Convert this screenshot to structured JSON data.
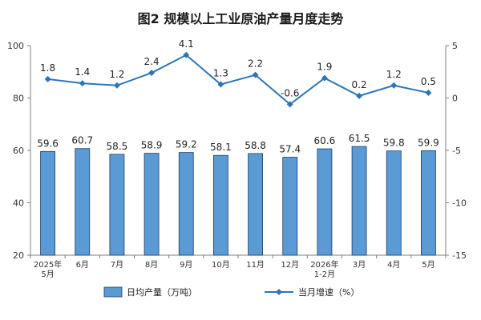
{
  "chart_data": {
    "type": "bar+line",
    "title": "图2  规模以上工业原油产量月度走势",
    "categories": [
      [
        "2025年",
        "5月"
      ],
      [
        "6月"
      ],
      [
        "7月"
      ],
      [
        "8月"
      ],
      [
        "9月"
      ],
      [
        "10月"
      ],
      [
        "11月"
      ],
      [
        "12月"
      ],
      [
        "2026年",
        "1-2月"
      ],
      [
        "3月"
      ],
      [
        "4月"
      ],
      [
        "5月"
      ]
    ],
    "series": [
      {
        "name": "日均产量（万吨）",
        "type": "bar",
        "axis": "left",
        "color": "#5b9bd5",
        "values": [
          59.6,
          60.7,
          58.5,
          58.9,
          59.2,
          58.1,
          58.8,
          57.4,
          60.6,
          61.5,
          59.8,
          59.9
        ],
        "labels": [
          "59.6",
          "60.7",
          "58.5",
          "58.9",
          "59.2",
          "58.1",
          "58.8",
          "57.4",
          "60.6",
          "61.5",
          "59.8",
          "59.9"
        ]
      },
      {
        "name": "当月增速（%）",
        "type": "line",
        "axis": "right",
        "color": "#2e75b6",
        "values": [
          1.8,
          1.4,
          1.2,
          2.4,
          4.1,
          1.3,
          2.2,
          -0.6,
          1.9,
          0.2,
          1.2,
          0.5
        ],
        "labels": [
          "1.8",
          "1.4",
          "1.2",
          "2.4",
          "4.1",
          "1.3",
          "2.2",
          "-0.6",
          "1.9",
          "0.2",
          "1.2",
          "0.5"
        ]
      }
    ],
    "y_left": {
      "range": [
        20,
        100
      ],
      "ticks": [
        "20",
        "40",
        "60",
        "80",
        "100"
      ]
    },
    "y_right": {
      "range": [
        -15,
        5
      ],
      "ticks": [
        "-15",
        "-10",
        "-5",
        "0",
        "5"
      ]
    },
    "grid": false,
    "legend_position": "bottom"
  }
}
